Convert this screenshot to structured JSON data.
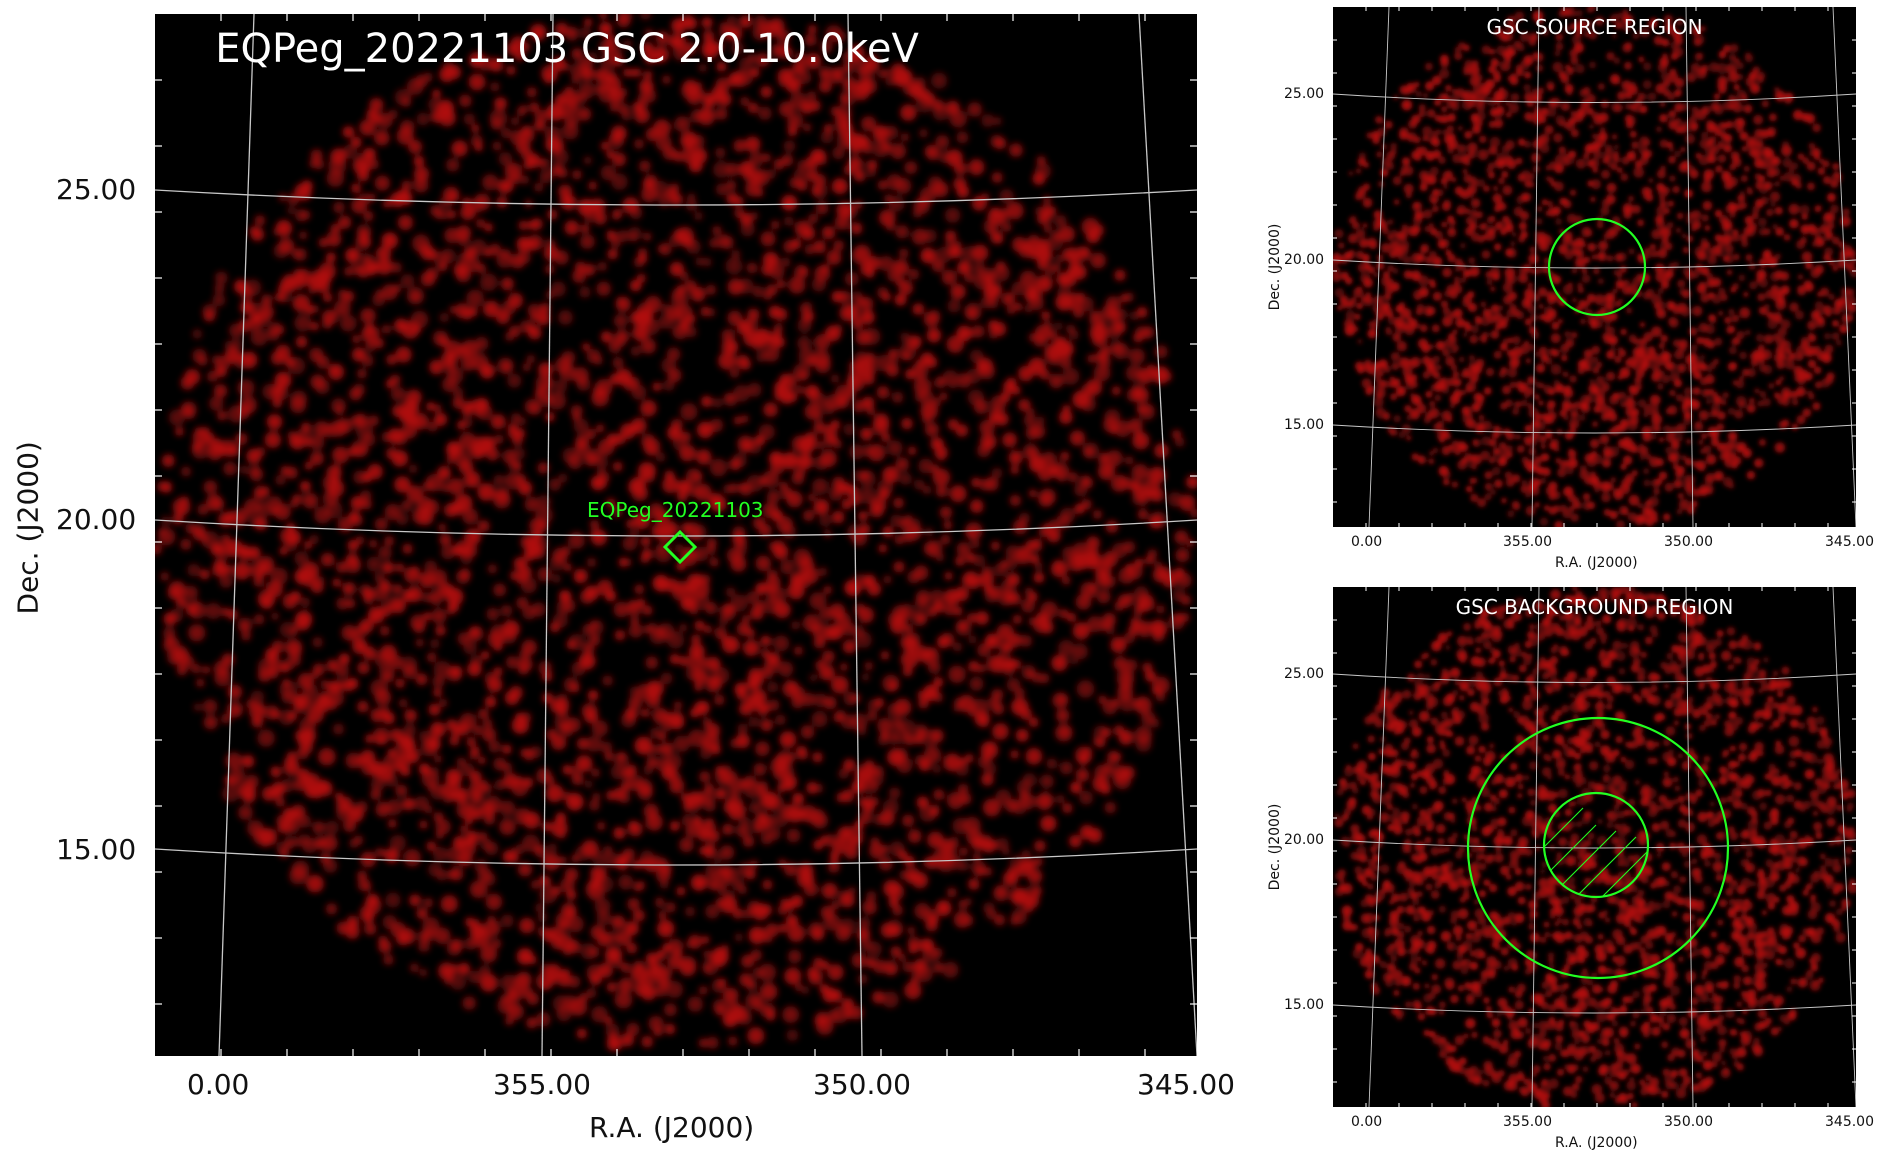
{
  "main_panel": {
    "title": "EQPeg_20221103 GSC 2.0-10.0keV",
    "source_label": "EQPeg_20221103",
    "xlabel": "R.A. (J2000)",
    "ylabel": "Dec. (J2000)",
    "x_ticks": [
      "0.00",
      "355.00",
      "350.00",
      "345.00"
    ],
    "y_ticks": [
      "25.00",
      "20.00",
      "15.00"
    ]
  },
  "source_panel": {
    "title": "GSC SOURCE REGION",
    "xlabel": "R.A. (J2000)",
    "ylabel": "Dec. (J2000)",
    "x_ticks": [
      "0.00",
      "355.00",
      "350.00",
      "345.00"
    ],
    "y_ticks": [
      "25.00",
      "20.00",
      "15.00"
    ]
  },
  "background_panel": {
    "title": "GSC BACKGROUND REGION",
    "xlabel": "R.A. (J2000)",
    "ylabel": "Dec. (J2000)",
    "x_ticks": [
      "0.00",
      "355.00",
      "350.00",
      "345.00"
    ],
    "y_ticks": [
      "25.00",
      "20.00",
      "15.00"
    ]
  },
  "colors": {
    "image_background": "#000000",
    "counts": "#b01010",
    "grid": "#c8c8c8",
    "region": "#22ff22",
    "title_text": "#ffffff",
    "axis_text": "#111111"
  }
}
